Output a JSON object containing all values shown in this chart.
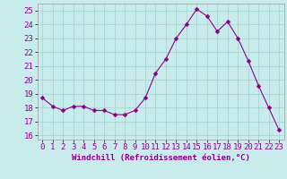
{
  "x": [
    0,
    1,
    2,
    3,
    4,
    5,
    6,
    7,
    8,
    9,
    10,
    11,
    12,
    13,
    14,
    15,
    16,
    17,
    18,
    19,
    20,
    21,
    22,
    23
  ],
  "y": [
    18.7,
    18.1,
    17.8,
    18.1,
    18.1,
    17.8,
    17.8,
    17.5,
    17.5,
    17.8,
    18.7,
    20.5,
    21.5,
    23.0,
    24.0,
    25.1,
    24.6,
    23.5,
    24.2,
    23.0,
    21.4,
    19.6,
    18.0,
    16.4
  ],
  "line_color": "#8B008B",
  "marker_color": "#8B008B",
  "bg_color": "#c8ecec",
  "grid_color": "#aad4d4",
  "xlabel": "Windchill (Refroidissement éolien,°C)",
  "ylim": [
    15.7,
    25.5
  ],
  "xlim": [
    -0.5,
    23.5
  ],
  "yticks": [
    16,
    17,
    18,
    19,
    20,
    21,
    22,
    23,
    24,
    25
  ],
  "xticks": [
    0,
    1,
    2,
    3,
    4,
    5,
    6,
    7,
    8,
    9,
    10,
    11,
    12,
    13,
    14,
    15,
    16,
    17,
    18,
    19,
    20,
    21,
    22,
    23
  ],
  "xlabel_fontsize": 6.5,
  "tick_fontsize": 6.5,
  "line_width": 0.8,
  "marker_size": 2.5
}
